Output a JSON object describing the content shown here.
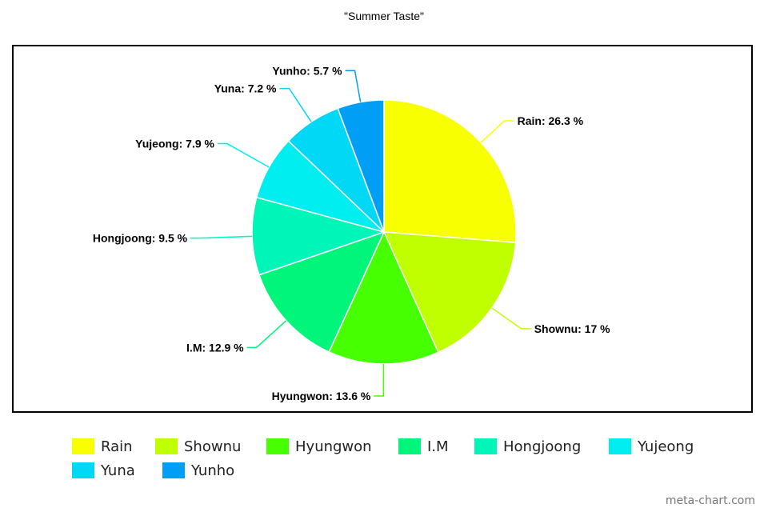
{
  "chart_data": {
    "type": "pie",
    "title": "\"Summer Taste\"",
    "slices": [
      {
        "label": "Rain",
        "value": 26.3,
        "display": "Rain: 26.3 %",
        "color": "#f7ff00"
      },
      {
        "label": "Shownu",
        "value": 17,
        "display": "Shownu: 17 %",
        "color": "#bfff00"
      },
      {
        "label": "Hyungwon",
        "value": 13.6,
        "display": "Hyungwon: 13.6 %",
        "color": "#46ff00"
      },
      {
        "label": "I.M",
        "value": 12.9,
        "display": "I.M: 12.9 %",
        "color": "#00f57a"
      },
      {
        "label": "Hongjoong",
        "value": 9.5,
        "display": "Hongjoong: 9.5 %",
        "color": "#00f5b8"
      },
      {
        "label": "Yujeong",
        "value": 7.9,
        "display": "Yujeong: 7.9 %",
        "color": "#00eef0"
      },
      {
        "label": "Yuna",
        "value": 7.2,
        "display": "Yuna: 7.2 %",
        "color": "#00d8f5"
      },
      {
        "label": "Yunho",
        "value": 5.7,
        "display": "Yunho: 5.7 %",
        "color": "#009ff5"
      }
    ],
    "legend_position": "bottom"
  },
  "watermark": "meta-chart.com"
}
